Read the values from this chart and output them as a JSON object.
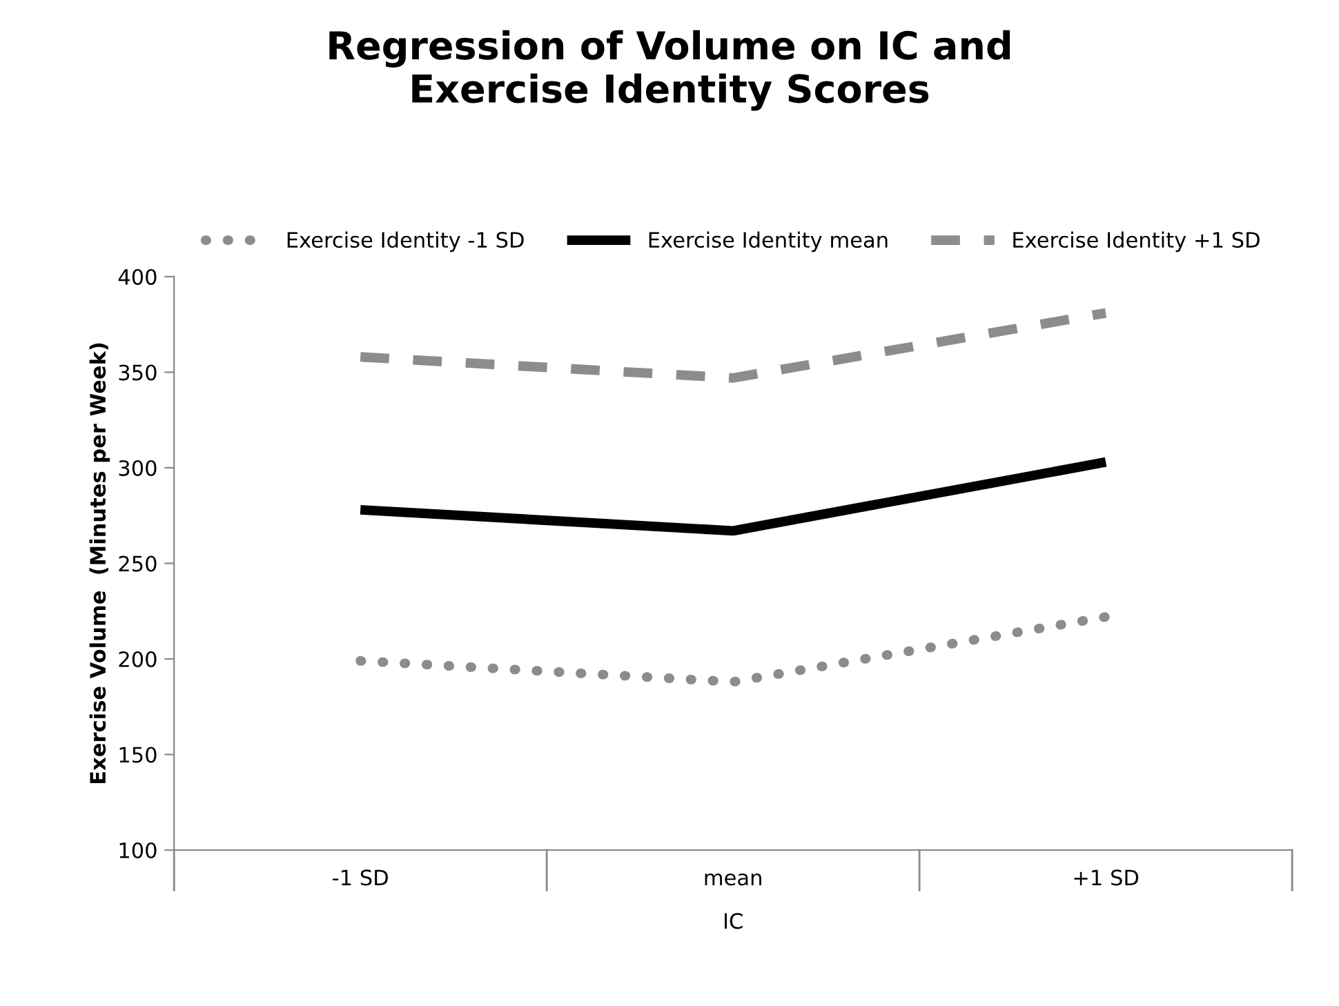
{
  "chart_data": {
    "type": "line",
    "title": "Regression of Volume on IC and\nExercise Identity Scores",
    "xlabel": "IC",
    "ylabel": "Exercise Volume  (Minutes per Week)",
    "categories": [
      "-1 SD",
      "mean",
      "+1 SD"
    ],
    "series": [
      {
        "name": "Exercise Identity -1 SD",
        "color": "#8c8c8c",
        "line_style": "dotted",
        "values": [
          199,
          188,
          222
        ]
      },
      {
        "name": "Exercise Identity mean",
        "color": "#000000",
        "line_style": "solid",
        "values": [
          278,
          267,
          303
        ]
      },
      {
        "name": "Exercise Identity +1 SD",
        "color": "#8c8c8c",
        "line_style": "dashed",
        "values": [
          358,
          347,
          381
        ]
      }
    ],
    "ylim": [
      100,
      400
    ],
    "yticks": [
      100,
      150,
      200,
      250,
      300,
      350,
      400
    ],
    "grid": false,
    "legend": "top",
    "marker": "none"
  }
}
